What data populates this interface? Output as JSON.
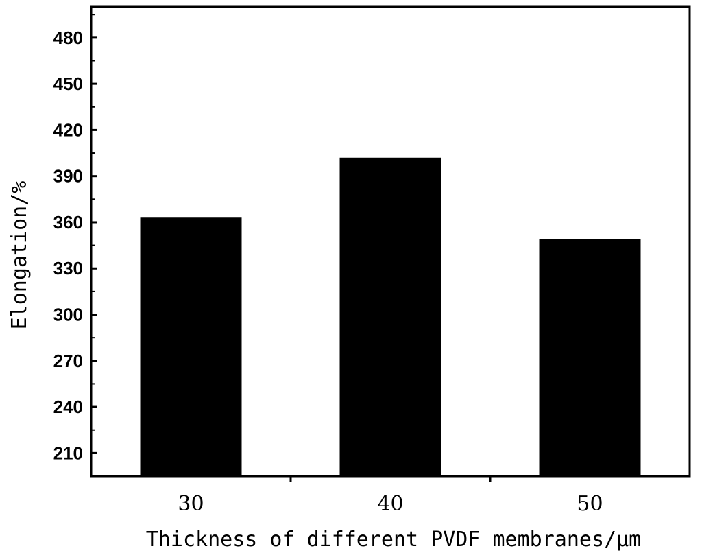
{
  "chart_data": {
    "type": "bar",
    "categories": [
      "30",
      "40",
      "50"
    ],
    "values": [
      363,
      402,
      349
    ],
    "xlabel": "Thickness of different PVDF membranes/μm",
    "ylabel": "Elongation/%",
    "ylim": [
      195,
      500
    ],
    "yticks": [
      210,
      240,
      270,
      300,
      330,
      360,
      390,
      420,
      450,
      480
    ],
    "grid": false,
    "legend": "none",
    "bar_color": "#000000",
    "axis_color": "#000000"
  }
}
